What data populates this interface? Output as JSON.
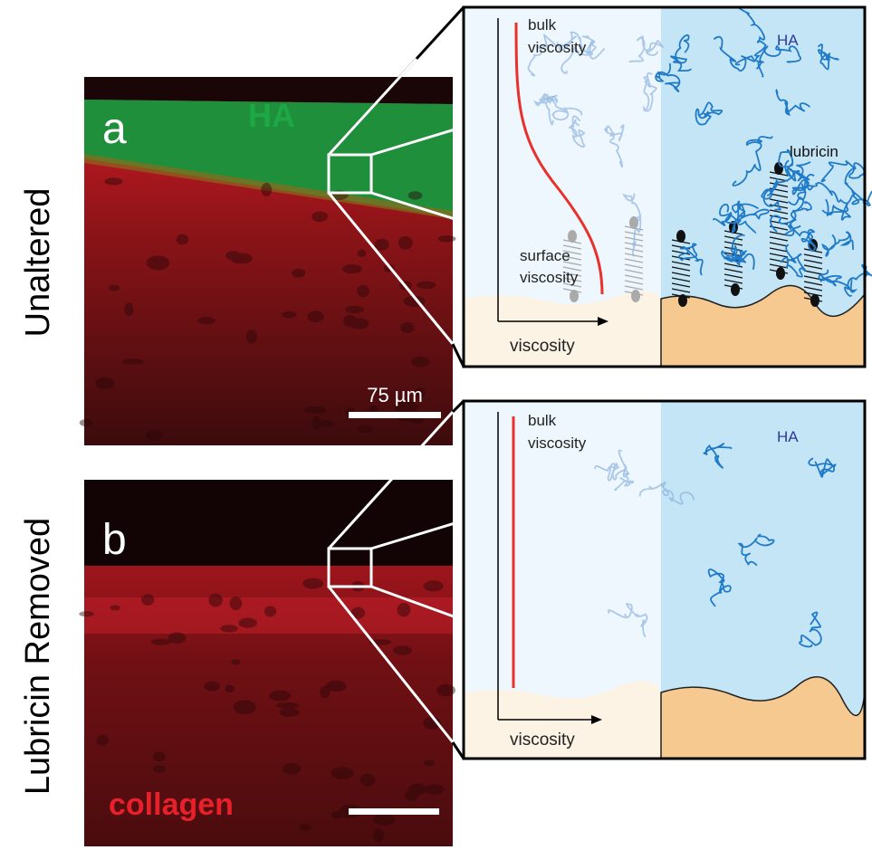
{
  "rows": [
    {
      "label": "Unaltered",
      "letter": "a",
      "stain_label": "HA",
      "scale_bar": "75 µm",
      "schematic": {
        "top_label": [
          "bulk",
          "viscosity"
        ],
        "region_label": "HA",
        "molecule_label": "lubricin",
        "bottom_label": [
          "surface",
          "viscosity"
        ],
        "axis_label": "viscosity"
      }
    },
    {
      "label": "Lubricin Removed",
      "letter": "b",
      "stain_label": "collagen",
      "schematic": {
        "top_label": [
          "bulk",
          "viscosity"
        ],
        "region_label": "HA",
        "axis_label": "viscosity"
      }
    }
  ]
}
